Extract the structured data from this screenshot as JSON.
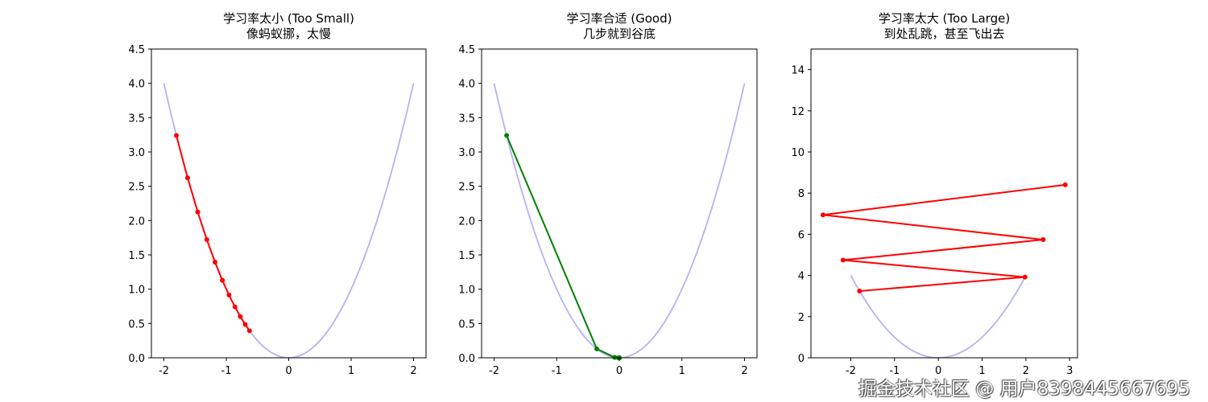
{
  "chart_data": [
    {
      "type": "line",
      "title": "学习率太小 (Too Small)",
      "subtitle": "像蚂蚁挪，太慢",
      "xlim": [
        -2.2,
        2.2
      ],
      "ylim": [
        0,
        4.5
      ],
      "xticks": [
        -2,
        -1,
        0,
        1,
        2
      ],
      "yticks": [
        0.0,
        0.5,
        1.0,
        1.5,
        2.0,
        2.5,
        3.0,
        3.5,
        4.0,
        4.5
      ],
      "ytick_decimals": 1,
      "grid": false,
      "curve": {
        "function": "y = x^2",
        "x_range": [
          -2,
          2
        ],
        "color": "#b3b3f2"
      },
      "path": {
        "color": "#ff0000",
        "x": [
          -1.8,
          -1.62,
          -1.458,
          -1.312,
          -1.181,
          -1.063,
          -0.957,
          -0.861,
          -0.775,
          -0.697,
          -0.628
        ],
        "y": [
          3.24,
          2.624,
          2.126,
          1.722,
          1.395,
          1.13,
          0.915,
          0.741,
          0.6,
          0.486,
          0.394
        ]
      }
    },
    {
      "type": "line",
      "title": "学习率合适 (Good)",
      "subtitle": "几步就到谷底",
      "xlim": [
        -2.2,
        2.2
      ],
      "ylim": [
        0,
        4.5
      ],
      "xticks": [
        -2,
        -1,
        0,
        1,
        2
      ],
      "yticks": [
        0.0,
        0.5,
        1.0,
        1.5,
        2.0,
        2.5,
        3.0,
        3.5,
        4.0,
        4.5
      ],
      "ytick_decimals": 1,
      "grid": false,
      "curve": {
        "function": "y = x^2",
        "x_range": [
          -2,
          2
        ],
        "color": "#b3b3f2"
      },
      "path": {
        "color": "#008000",
        "x": [
          -1.8,
          -0.36,
          -0.072,
          -0.0144,
          -0.00288,
          -0.000576,
          -0.000115,
          -2.3e-05,
          -4.6e-06,
          -9e-07,
          -2e-07
        ],
        "y": [
          3.24,
          0.1296,
          0.00518,
          0.000207,
          8.3e-06,
          3e-07,
          0,
          0,
          0,
          0,
          0
        ]
      }
    },
    {
      "type": "line",
      "title": "学习率太大 (Too Large)",
      "subtitle": "到处乱跳，甚至飞出去",
      "xlim": [
        -2.91,
        3.18
      ],
      "ylim": [
        0,
        15
      ],
      "xticks": [
        -2,
        -1,
        0,
        1,
        2,
        3
      ],
      "yticks": [
        0,
        2,
        4,
        6,
        8,
        10,
        12,
        14
      ],
      "ytick_decimals": 0,
      "grid": false,
      "curve": {
        "function": "y = x^2",
        "x_range": [
          -2,
          2
        ],
        "color": "#b3b3f2"
      },
      "path": {
        "color": "#ff0000",
        "x": [
          -1.8,
          1.98,
          -2.178,
          2.396,
          -2.635,
          2.899
        ],
        "y": [
          3.24,
          3.92,
          4.744,
          5.74,
          6.945,
          8.404
        ]
      }
    }
  ],
  "watermark": "掘金技术社区 @ 用户8398445667695"
}
